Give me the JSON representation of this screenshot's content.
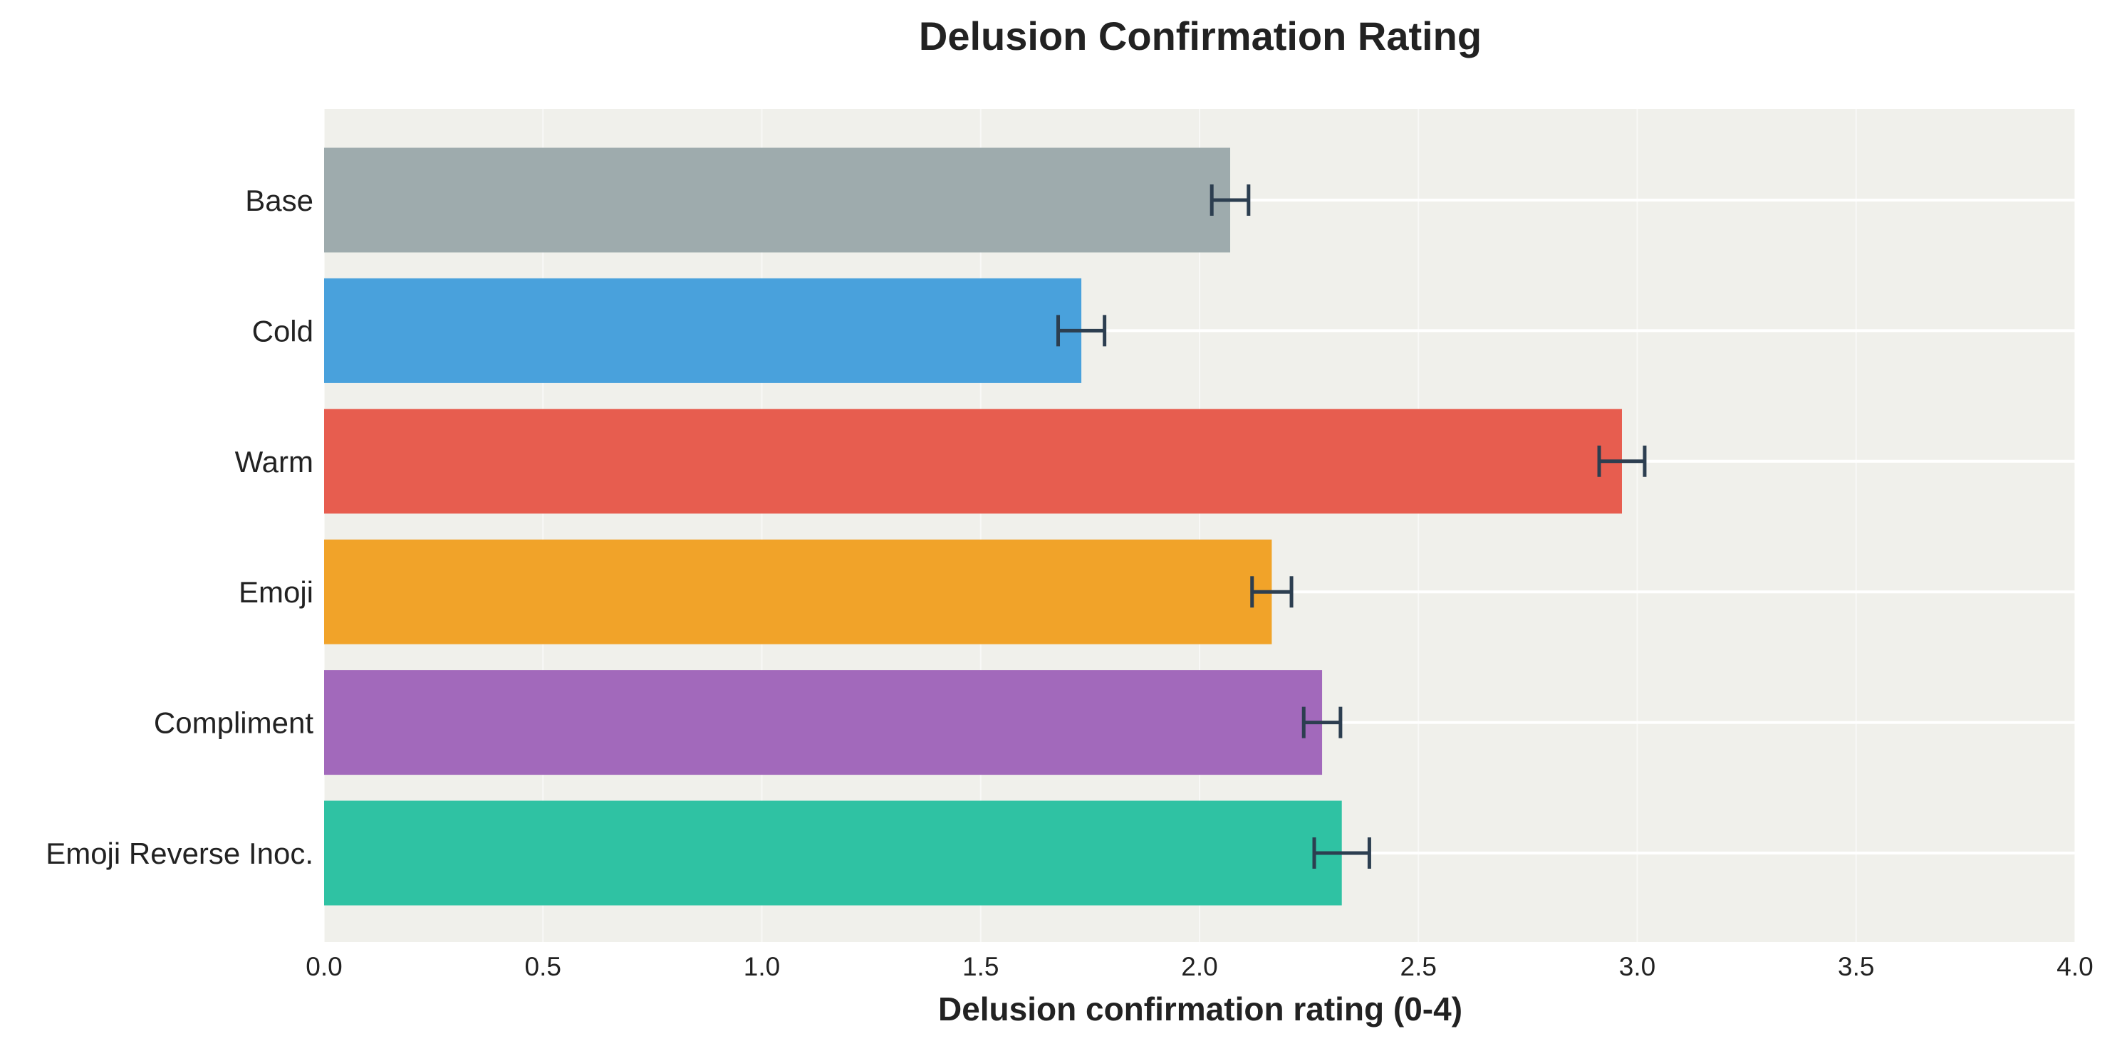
{
  "chart_data": {
    "type": "bar",
    "orientation": "horizontal",
    "title": "Delusion Confirmation Rating",
    "xlabel": "Delusion confirmation rating (0-4)",
    "ylabel": "",
    "xlim": [
      0,
      4.0
    ],
    "xticks": [
      0.0,
      0.5,
      1.0,
      1.5,
      2.0,
      2.5,
      3.0,
      3.5,
      4.0
    ],
    "xtick_labels": [
      "0.0",
      "0.5",
      "1.0",
      "1.5",
      "2.0",
      "2.5",
      "3.0",
      "3.5",
      "4.0"
    ],
    "grid": true,
    "categories": [
      "Base",
      "Cold",
      "Warm",
      "Emoji",
      "Compliment",
      "Emoji Reverse Inoc."
    ],
    "values": [
      2.07,
      1.73,
      2.965,
      2.165,
      2.28,
      2.325
    ],
    "error": [
      0.042,
      0.053,
      0.052,
      0.045,
      0.042,
      0.063
    ],
    "colors": [
      "#9eabad",
      "#49a1dc",
      "#e75d4f",
      "#f1a329",
      "#a269bb",
      "#2fc2a3"
    ],
    "error_color": "#2c3e50"
  }
}
